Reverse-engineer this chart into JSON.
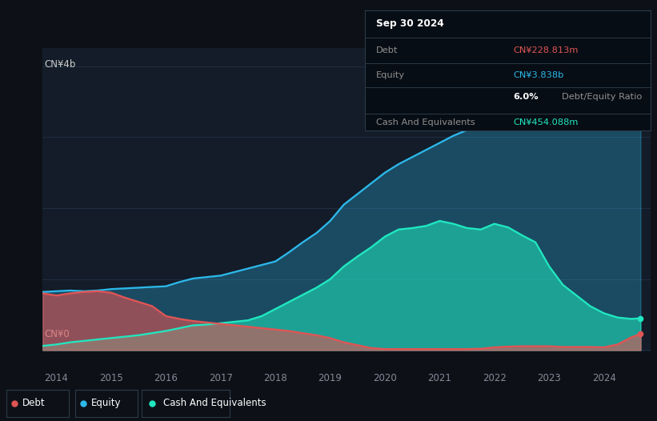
{
  "bg_color": "#0d1117",
  "plot_bg_color": "#131c28",
  "grid_color": "#1e2d40",
  "ylabel_top": "CN¥4b",
  "ylabel_bottom": "CN¥0",
  "debt_color": "#e05555",
  "equity_color": "#2db8ea",
  "cash_color": "#20e8c0",
  "tooltip": {
    "date": "Sep 30 2024",
    "debt_label": "Debt",
    "debt_value": "CN¥228.813m",
    "equity_label": "Equity",
    "equity_value": "CN¥3.838b",
    "ratio_bold": "6.0%",
    "ratio_text": "Debt/Equity Ratio",
    "cash_label": "Cash And Equivalents",
    "cash_value": "CN¥454.088m"
  },
  "legend": [
    {
      "label": "Debt",
      "color": "#e05555"
    },
    {
      "label": "Equity",
      "color": "#2db8ea"
    },
    {
      "label": "Cash And Equivalents",
      "color": "#20e8c0"
    }
  ],
  "years": [
    2013.75,
    2014.0,
    2014.25,
    2014.5,
    2014.75,
    2015.0,
    2015.25,
    2015.5,
    2015.75,
    2016.0,
    2016.25,
    2016.5,
    2016.75,
    2017.0,
    2017.25,
    2017.5,
    2017.75,
    2018.0,
    2018.25,
    2018.5,
    2018.75,
    2019.0,
    2019.25,
    2019.5,
    2019.75,
    2020.0,
    2020.25,
    2020.5,
    2020.75,
    2021.0,
    2021.25,
    2021.5,
    2021.75,
    2022.0,
    2022.25,
    2022.5,
    2022.75,
    2023.0,
    2023.25,
    2023.5,
    2023.75,
    2024.0,
    2024.25,
    2024.5,
    2024.67
  ],
  "equity": [
    0.82,
    0.83,
    0.84,
    0.83,
    0.84,
    0.86,
    0.87,
    0.88,
    0.89,
    0.9,
    0.96,
    1.01,
    1.03,
    1.05,
    1.1,
    1.15,
    1.2,
    1.25,
    1.38,
    1.52,
    1.65,
    1.82,
    2.05,
    2.2,
    2.35,
    2.5,
    2.62,
    2.72,
    2.82,
    2.92,
    3.02,
    3.1,
    3.17,
    3.22,
    3.28,
    3.38,
    3.48,
    3.52,
    3.62,
    3.68,
    3.73,
    3.78,
    3.82,
    3.85,
    3.84
  ],
  "debt": [
    0.8,
    0.77,
    0.8,
    0.82,
    0.83,
    0.81,
    0.74,
    0.68,
    0.62,
    0.48,
    0.44,
    0.41,
    0.39,
    0.37,
    0.35,
    0.33,
    0.31,
    0.29,
    0.27,
    0.24,
    0.21,
    0.17,
    0.11,
    0.07,
    0.03,
    0.015,
    0.015,
    0.015,
    0.015,
    0.015,
    0.015,
    0.015,
    0.02,
    0.04,
    0.05,
    0.055,
    0.055,
    0.055,
    0.045,
    0.045,
    0.045,
    0.04,
    0.08,
    0.18,
    0.23
  ],
  "cash": [
    0.06,
    0.08,
    0.11,
    0.13,
    0.15,
    0.17,
    0.19,
    0.21,
    0.24,
    0.27,
    0.31,
    0.35,
    0.36,
    0.38,
    0.4,
    0.42,
    0.48,
    0.58,
    0.68,
    0.78,
    0.88,
    1.0,
    1.18,
    1.32,
    1.45,
    1.6,
    1.7,
    1.72,
    1.75,
    1.82,
    1.78,
    1.72,
    1.7,
    1.78,
    1.73,
    1.62,
    1.52,
    1.18,
    0.92,
    0.77,
    0.62,
    0.52,
    0.46,
    0.44,
    0.45
  ],
  "xmin": 2013.75,
  "xmax": 2024.85,
  "ymin": -0.02,
  "ymax": 4.25
}
